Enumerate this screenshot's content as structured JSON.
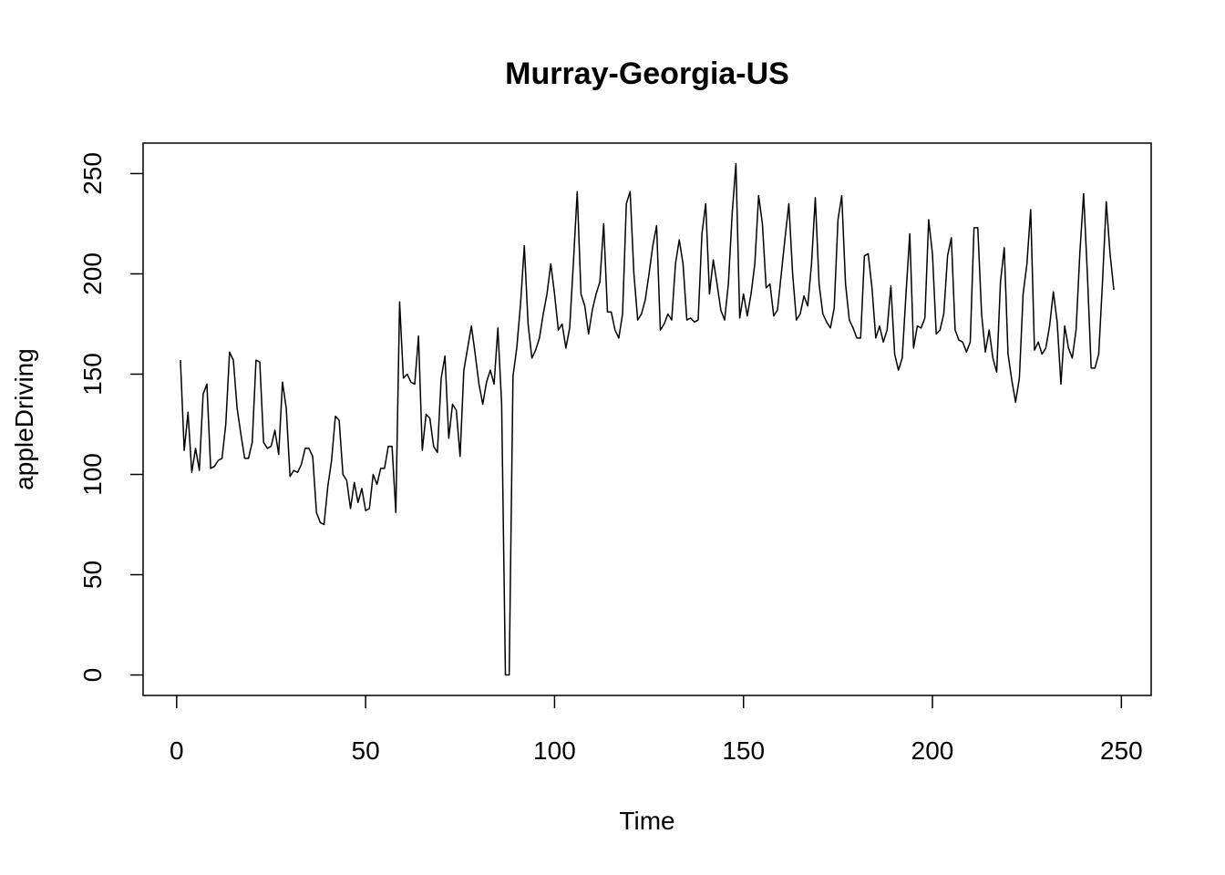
{
  "chart_data": {
    "type": "line",
    "title": "Murray-Georgia-US",
    "x_label": "Time",
    "y_label": "appleDriving",
    "color": "#000000",
    "xlim": [
      -8.88,
      257.88
    ],
    "ylim": [
      -10.2,
      265.2
    ],
    "xticks": [
      0,
      50,
      100,
      150,
      200,
      250
    ],
    "yticks": [
      0,
      50,
      100,
      150,
      200,
      250
    ],
    "x": [
      1,
      2,
      3,
      4,
      5,
      6,
      7,
      8,
      9,
      10,
      11,
      12,
      13,
      14,
      15,
      16,
      17,
      18,
      19,
      20,
      21,
      22,
      23,
      24,
      25,
      26,
      27,
      28,
      29,
      30,
      31,
      32,
      33,
      34,
      35,
      36,
      37,
      38,
      39,
      40,
      41,
      42,
      43,
      44,
      45,
      46,
      47,
      48,
      49,
      50,
      51,
      52,
      53,
      54,
      55,
      56,
      57,
      58,
      59,
      60,
      61,
      62,
      63,
      64,
      65,
      66,
      67,
      68,
      69,
      70,
      71,
      72,
      73,
      74,
      75,
      76,
      77,
      78,
      79,
      80,
      81,
      82,
      83,
      84,
      85,
      86,
      87,
      88,
      89,
      90,
      91,
      92,
      93,
      94,
      95,
      96,
      97,
      98,
      99,
      100,
      101,
      102,
      103,
      104,
      105,
      106,
      107,
      108,
      109,
      110,
      111,
      112,
      113,
      114,
      115,
      116,
      117,
      118,
      119,
      120,
      121,
      122,
      123,
      124,
      125,
      126,
      127,
      128,
      129,
      130,
      131,
      132,
      133,
      134,
      135,
      136,
      137,
      138,
      139,
      140,
      141,
      142,
      143,
      144,
      145,
      146,
      147,
      148,
      149,
      150,
      151,
      152,
      153,
      154,
      155,
      156,
      157,
      158,
      159,
      160,
      161,
      162,
      163,
      164,
      165,
      166,
      167,
      168,
      169,
      170,
      171,
      172,
      173,
      174,
      175,
      176,
      177,
      178,
      179,
      180,
      181,
      182,
      183,
      184,
      185,
      186,
      187,
      188,
      189,
      190,
      191,
      192,
      193,
      194,
      195,
      196,
      197,
      198,
      199,
      200,
      201,
      202,
      203,
      204,
      205,
      206,
      207,
      208,
      209,
      210,
      211,
      212,
      213,
      214,
      215,
      216,
      217,
      218,
      219,
      220,
      221,
      222,
      223,
      224,
      225,
      226,
      227,
      228,
      229,
      230,
      231,
      232,
      233,
      234,
      235,
      236,
      237,
      238,
      239,
      240,
      241,
      242,
      243,
      244,
      245,
      246,
      247,
      248
    ],
    "values": [
      157,
      112,
      131,
      101,
      113,
      102,
      140,
      145,
      103,
      104,
      107,
      108,
      125,
      161,
      157,
      133,
      120,
      108,
      108,
      116,
      157,
      156,
      116,
      113,
      114,
      122,
      110,
      146,
      133,
      99,
      102,
      101,
      105,
      113,
      113,
      109,
      81,
      76,
      75,
      94,
      107,
      129,
      127,
      100,
      97,
      83,
      96,
      86,
      93,
      82,
      83,
      100,
      95,
      103,
      103,
      114,
      114,
      81,
      186,
      148,
      150,
      146,
      145,
      169,
      112,
      130,
      128,
      114,
      111,
      148,
      159,
      118,
      135,
      132,
      109,
      152,
      163,
      174,
      160,
      145,
      135,
      146,
      152,
      145,
      173,
      135,
      0,
      0,
      149,
      163,
      185,
      214,
      175,
      158,
      162,
      168,
      180,
      190,
      205,
      190,
      172,
      175,
      163,
      173,
      206,
      241,
      190,
      184,
      170,
      182,
      190,
      196,
      225,
      181,
      181,
      172,
      168,
      180,
      235,
      241,
      200,
      177,
      180,
      187,
      200,
      214,
      224,
      172,
      175,
      180,
      177,
      205,
      217,
      205,
      177,
      178,
      176,
      177,
      220,
      235,
      190,
      207,
      195,
      182,
      177,
      195,
      230,
      255,
      178,
      190,
      179,
      190,
      205,
      239,
      225,
      193,
      195,
      179,
      182,
      200,
      218,
      235,
      200,
      177,
      180,
      189,
      184,
      205,
      238,
      195,
      180,
      176,
      173,
      183,
      227,
      239,
      195,
      177,
      173,
      168,
      168,
      209,
      210,
      193,
      168,
      174,
      166,
      172,
      194,
      160,
      152,
      158,
      190,
      220,
      163,
      174,
      173,
      178,
      227,
      210,
      170,
      172,
      180,
      209,
      218,
      172,
      167,
      166,
      161,
      166,
      223,
      223,
      180,
      161,
      172,
      158,
      151,
      196,
      213,
      160,
      147,
      136,
      148,
      190,
      205,
      232,
      162,
      166,
      160,
      163,
      174,
      191,
      176,
      145,
      174,
      163,
      158,
      172,
      210,
      240,
      200,
      153,
      153,
      160,
      196,
      236,
      210,
      192
    ]
  }
}
